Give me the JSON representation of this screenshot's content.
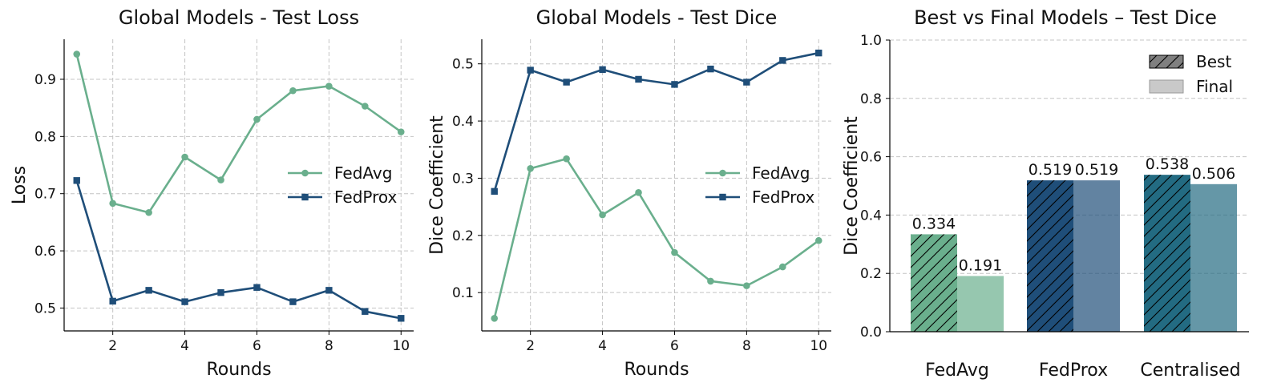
{
  "chart_data": [
    {
      "type": "line",
      "title": "Global Models - Test Loss",
      "xlabel": "Rounds",
      "ylabel": "Loss",
      "x": [
        1,
        2,
        3,
        4,
        5,
        6,
        7,
        8,
        9,
        10
      ],
      "xticks": [
        2,
        4,
        6,
        8,
        10
      ],
      "yticks": [
        0.5,
        0.6,
        0.7,
        0.8,
        0.9
      ],
      "xlim": [
        0.65,
        10.35
      ],
      "ylim": [
        0.46,
        0.97
      ],
      "grid": true,
      "legend_position": "center-right",
      "series": [
        {
          "name": "FedAvg",
          "marker": "circle",
          "color": "#6aaf8d",
          "values": [
            0.944,
            0.683,
            0.667,
            0.764,
            0.724,
            0.83,
            0.88,
            0.888,
            0.853,
            0.808
          ]
        },
        {
          "name": "FedProx",
          "marker": "square",
          "color": "#1f4e79",
          "values": [
            0.723,
            0.512,
            0.531,
            0.511,
            0.527,
            0.536,
            0.511,
            0.531,
            0.494,
            0.482
          ]
        }
      ]
    },
    {
      "type": "line",
      "title": "Global Models - Test Dice",
      "xlabel": "Rounds",
      "ylabel": "Dice Coefficient",
      "x": [
        1,
        2,
        3,
        4,
        5,
        6,
        7,
        8,
        9,
        10
      ],
      "xticks": [
        2,
        4,
        6,
        8,
        10
      ],
      "yticks": [
        0.1,
        0.2,
        0.3,
        0.4,
        0.5
      ],
      "xlim": [
        0.65,
        10.35
      ],
      "ylim": [
        0.033,
        0.543
      ],
      "grid": true,
      "legend_position": "center-right",
      "series": [
        {
          "name": "FedAvg",
          "marker": "circle",
          "color": "#6aaf8d",
          "values": [
            0.055,
            0.317,
            0.334,
            0.236,
            0.275,
            0.17,
            0.12,
            0.112,
            0.145,
            0.191
          ]
        },
        {
          "name": "FedProx",
          "marker": "square",
          "color": "#1f4e79",
          "values": [
            0.277,
            0.489,
            0.468,
            0.49,
            0.473,
            0.464,
            0.491,
            0.468,
            0.506,
            0.519
          ]
        }
      ]
    },
    {
      "type": "bar",
      "title": "Best vs Final Models – Test Dice",
      "xlabel": "",
      "ylabel": "Dice Coefficient",
      "categories": [
        "FedAvg",
        "FedProx",
        "Centralised"
      ],
      "yticks": [
        "0.0",
        "0.2",
        "0.4",
        "0.6",
        "0.8",
        "1.0"
      ],
      "ylim": [
        0,
        1.0
      ],
      "grid": true,
      "legend_position": "top-right",
      "category_colors": [
        "#6aaf8d",
        "#1f4e79",
        "#236b82"
      ],
      "series": [
        {
          "name": "Best",
          "hatched": true,
          "values": [
            0.334,
            0.519,
            0.538
          ],
          "labels": [
            "0.334",
            "0.519",
            "0.538"
          ]
        },
        {
          "name": "Final",
          "hatched": false,
          "values": [
            0.191,
            0.519,
            0.506
          ],
          "labels": [
            "0.191",
            "0.519",
            "0.506"
          ]
        }
      ]
    }
  ]
}
